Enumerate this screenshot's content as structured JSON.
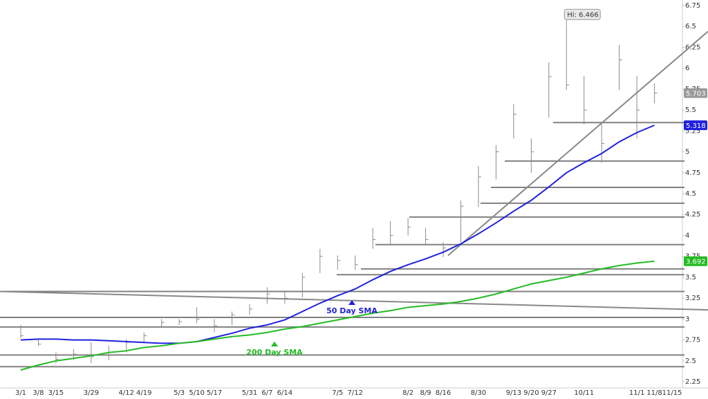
{
  "chart_data": {
    "type": "ohlc",
    "categories": [
      "3/1",
      "3/8",
      "3/15",
      null,
      "3/29",
      null,
      "4/12",
      "4/19",
      null,
      "5/3",
      "5/10",
      "5/17",
      null,
      "5/31",
      "6/7",
      "6/14",
      null,
      null,
      "7/5",
      "7/12",
      null,
      null,
      "8/2",
      "8/9",
      "8/16",
      null,
      "8/30",
      null,
      "9/13",
      "9/20",
      "9/27",
      null,
      "10/11",
      null,
      null,
      "11/1",
      "11/8",
      "11/15"
    ],
    "ylim": [
      2.176,
      6.816
    ],
    "yticks": [
      2.25,
      2.5,
      2.75,
      3,
      3.25,
      3.5,
      3.75,
      4,
      4.25,
      4.5,
      4.75,
      5,
      5.25,
      5.5,
      5.75,
      6,
      6.25,
      6.5,
      6.75
    ],
    "series": [
      {
        "color": "#8a8a8a",
        "high": [
          2.93,
          2.76,
          2.6,
          2.64,
          2.72,
          2.68,
          2.76,
          2.84,
          3.0,
          3.0,
          3.14,
          3.0,
          3.09,
          3.18,
          3.38,
          3.34,
          3.55,
          3.84,
          3.76,
          3.76,
          4.09,
          4.17,
          4.21,
          4.09,
          3.92,
          4.42,
          4.83,
          5.08,
          5.57,
          5.16,
          6.07,
          6.466,
          5.91,
          5.33,
          6.28,
          5.91,
          5.82,
          null
        ],
        "low": [
          2.77,
          2.68,
          2.47,
          2.51,
          2.47,
          2.51,
          2.6,
          2.72,
          2.91,
          2.93,
          2.95,
          2.84,
          2.93,
          3.05,
          3.18,
          3.18,
          3.26,
          3.55,
          3.59,
          3.59,
          3.84,
          3.88,
          4.0,
          3.88,
          3.74,
          3.92,
          4.34,
          4.67,
          5.16,
          4.75,
          5.41,
          5.74,
          5.33,
          4.87,
          5.74,
          5.16,
          5.58,
          null
        ],
        "close": [
          2.8,
          2.7,
          2.52,
          2.58,
          2.55,
          2.6,
          2.72,
          2.8,
          2.96,
          2.97,
          3.0,
          2.92,
          3.05,
          3.12,
          3.3,
          3.25,
          3.5,
          3.75,
          3.7,
          3.65,
          3.95,
          4.0,
          4.1,
          3.95,
          3.85,
          4.35,
          4.7,
          5.0,
          5.45,
          5.0,
          5.9,
          5.8,
          5.5,
          5.1,
          6.1,
          5.5,
          5.703,
          null
        ]
      },
      {
        "name": "50 Day SMA",
        "color": "#1f1fe0",
        "values": [
          2.75,
          2.76,
          2.76,
          2.75,
          2.75,
          2.74,
          2.73,
          2.72,
          2.71,
          2.71,
          2.73,
          2.78,
          2.83,
          2.89,
          2.93,
          2.99,
          3.09,
          3.19,
          3.28,
          3.36,
          3.47,
          3.57,
          3.65,
          3.72,
          3.8,
          3.9,
          4.02,
          4.15,
          4.29,
          4.42,
          4.58,
          4.75,
          4.87,
          4.98,
          5.12,
          5.23,
          5.318,
          null
        ]
      },
      {
        "name": "200 Day SMA",
        "color": "#22bb22",
        "values": [
          2.39,
          2.45,
          2.5,
          2.53,
          2.56,
          2.6,
          2.62,
          2.66,
          2.68,
          2.71,
          2.73,
          2.76,
          2.79,
          2.81,
          2.84,
          2.88,
          2.91,
          2.95,
          2.99,
          3.03,
          3.07,
          3.1,
          3.14,
          3.16,
          3.18,
          3.21,
          3.25,
          3.3,
          3.36,
          3.42,
          3.46,
          3.5,
          3.55,
          3.6,
          3.64,
          3.67,
          3.692,
          null
        ]
      }
    ],
    "levels": [
      5.35,
      4.89,
      4.575,
      4.385,
      4.22,
      3.89,
      3.6,
      3.53,
      3.33,
      3.02,
      2.905,
      2.57,
      2.43
    ],
    "trendlines": [
      [
        3.33,
        3.11
      ],
      [
        3.76,
        6.44
      ]
    ],
    "annotations": [
      {
        "label": "Hi: 6.466",
        "value": 6.466
      }
    ]
  }
}
